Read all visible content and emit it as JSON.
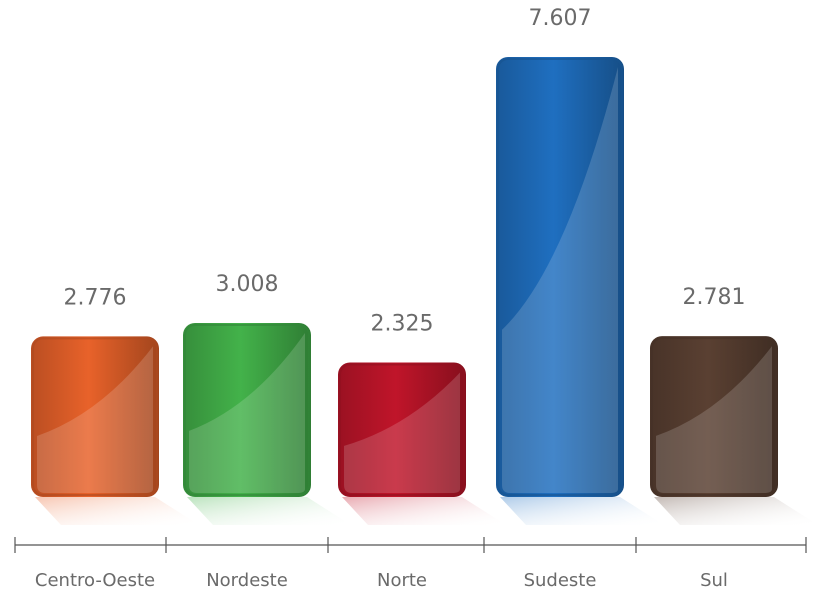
{
  "chart_data": {
    "type": "bar",
    "title": "",
    "xlabel": "",
    "ylabel": "",
    "categories": [
      "Centro-Oeste",
      "Nordeste",
      "Norte",
      "Sudeste",
      "Sul"
    ],
    "values": [
      2776,
      3008,
      2325,
      7607,
      2781
    ],
    "value_labels": [
      "2.776",
      "3.008",
      "2.325",
      "7.607",
      "2.781"
    ],
    "colors": [
      "#e8622a",
      "#43b24a",
      "#c0152a",
      "#1f6fc0",
      "#5a4032"
    ],
    "ylim": [
      0,
      7607
    ],
    "grid": false,
    "legend": "none"
  }
}
